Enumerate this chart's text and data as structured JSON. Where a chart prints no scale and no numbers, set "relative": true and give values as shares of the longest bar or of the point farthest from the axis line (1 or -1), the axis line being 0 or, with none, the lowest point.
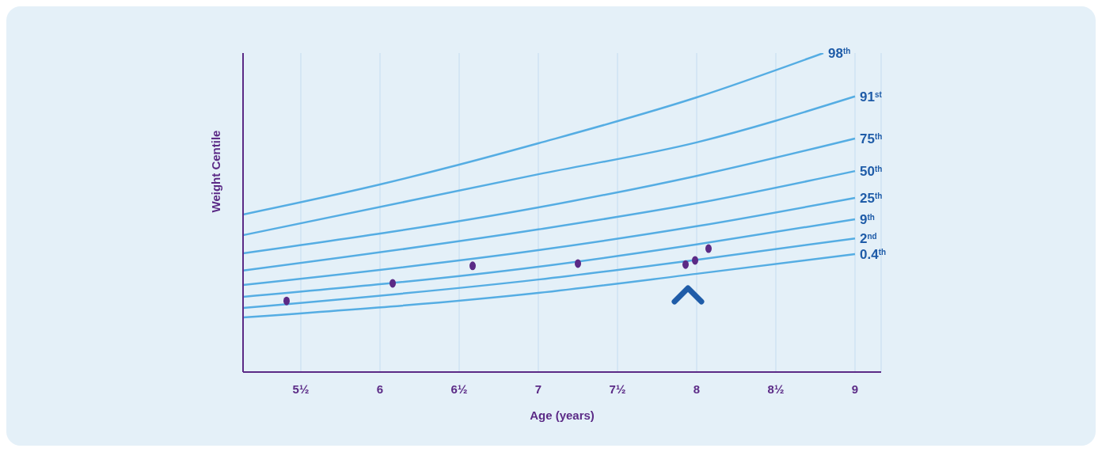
{
  "chart_data": {
    "type": "line",
    "relative": true,
    "xlabel": "Age (years)",
    "ylabel": "Weight Centile",
    "xlim": [
      5.135,
      9.165
    ],
    "xticks": [
      {
        "value": 5.5,
        "label": "5½"
      },
      6,
      {
        "value": 6.5,
        "label": "6½"
      },
      7,
      {
        "value": 7.5,
        "label": "7½"
      },
      8,
      {
        "value": 8.5,
        "label": "8½"
      },
      9
    ],
    "grid": "x",
    "marker": "none",
    "line_style": "solid",
    "series": [
      {
        "name": "98$^{th}$",
        "color": "#55ade3",
        "x": [
          5.135,
          6,
          6.5,
          7,
          8,
          8.8
        ],
        "values": [
          0.494,
          0.588,
          0.65,
          0.717,
          0.861,
          1.0
        ]
      },
      {
        "name": "91$^{st}$",
        "color": "#55ade3",
        "x": [
          5.135,
          7,
          8,
          9
        ],
        "values": [
          0.429,
          0.62,
          0.72,
          0.864
        ]
      },
      {
        "name": "75$^{th}$",
        "color": "#55ade3",
        "x": [
          5.135,
          7,
          8,
          9
        ],
        "values": [
          0.372,
          0.516,
          0.615,
          0.732
        ]
      },
      {
        "name": "50$^{th}$",
        "color": "#55ade3",
        "x": [
          5.135,
          7,
          8,
          9
        ],
        "values": [
          0.318,
          0.447,
          0.529,
          0.63
        ]
      },
      {
        "name": "25$^{th}$",
        "color": "#55ade3",
        "x": [
          5.135,
          7,
          8,
          9
        ],
        "values": [
          0.273,
          0.382,
          0.457,
          0.546
        ]
      },
      {
        "name": "9$^{th}$",
        "color": "#55ade3",
        "x": [
          5.135,
          7,
          8,
          9
        ],
        "values": [
          0.236,
          0.33,
          0.4,
          0.479
        ]
      },
      {
        "name": "2$^{nd}$",
        "color": "#55ade3",
        "x": [
          5.135,
          7,
          8,
          9
        ],
        "values": [
          0.201,
          0.29,
          0.352,
          0.419
        ]
      },
      {
        "name": "0.4$^{th}$",
        "color": "#55ade3",
        "x": [
          5.135,
          7,
          8,
          9
        ],
        "values": [
          0.171,
          0.248,
          0.308,
          0.37
        ]
      },
      {
        "type": "scatter",
        "marker": "circle",
        "color": "#5b2a86",
        "x": [
          5.41,
          6.08,
          6.585,
          7.25,
          7.93,
          7.99,
          8.075
        ],
        "values": [
          0.223,
          0.278,
          0.333,
          0.34,
          0.337,
          0.35,
          0.387
        ]
      }
    ]
  }
}
